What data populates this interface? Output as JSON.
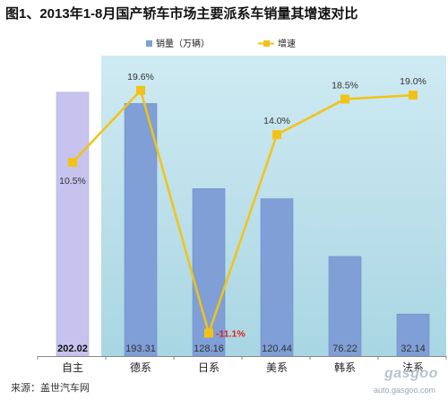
{
  "title": "图1、2013年1-8月国产轿车市场主要派系车销量其增速对比",
  "source": "来源：盖世汽车网",
  "watermark": {
    "brand": "gasgoo",
    "url": "auto.gasgoo.com"
  },
  "colors": {
    "bar": "#7f9fd6",
    "bar_first": "#c7c3ee",
    "line": "#f2c316",
    "plot_bg": "#bfe3ec",
    "negative_label": "#e0201b"
  },
  "chart_data": {
    "type": "bar",
    "categories": [
      "自主",
      "德系",
      "日系",
      "美系",
      "韩系",
      "法系"
    ],
    "series": [
      {
        "name": "销量（万辆）",
        "type": "bar",
        "values": [
          202.02,
          193.31,
          128.16,
          120.44,
          76.22,
          32.14
        ],
        "labels": [
          "202.02",
          "193.31",
          "128.16",
          "120.44",
          "76.22",
          "32.14"
        ]
      },
      {
        "name": "增速",
        "type": "line",
        "values": [
          10.5,
          19.6,
          -11.1,
          14.0,
          18.5,
          19.0
        ],
        "labels": [
          "10.5%",
          "19.6%",
          "-11.1%",
          "14.0%",
          "18.5%",
          "19.0%"
        ]
      }
    ],
    "ylim_left": [
      0,
      230
    ],
    "ylim_right": [
      -14,
      24
    ],
    "legend_position": "top",
    "grid": false
  }
}
